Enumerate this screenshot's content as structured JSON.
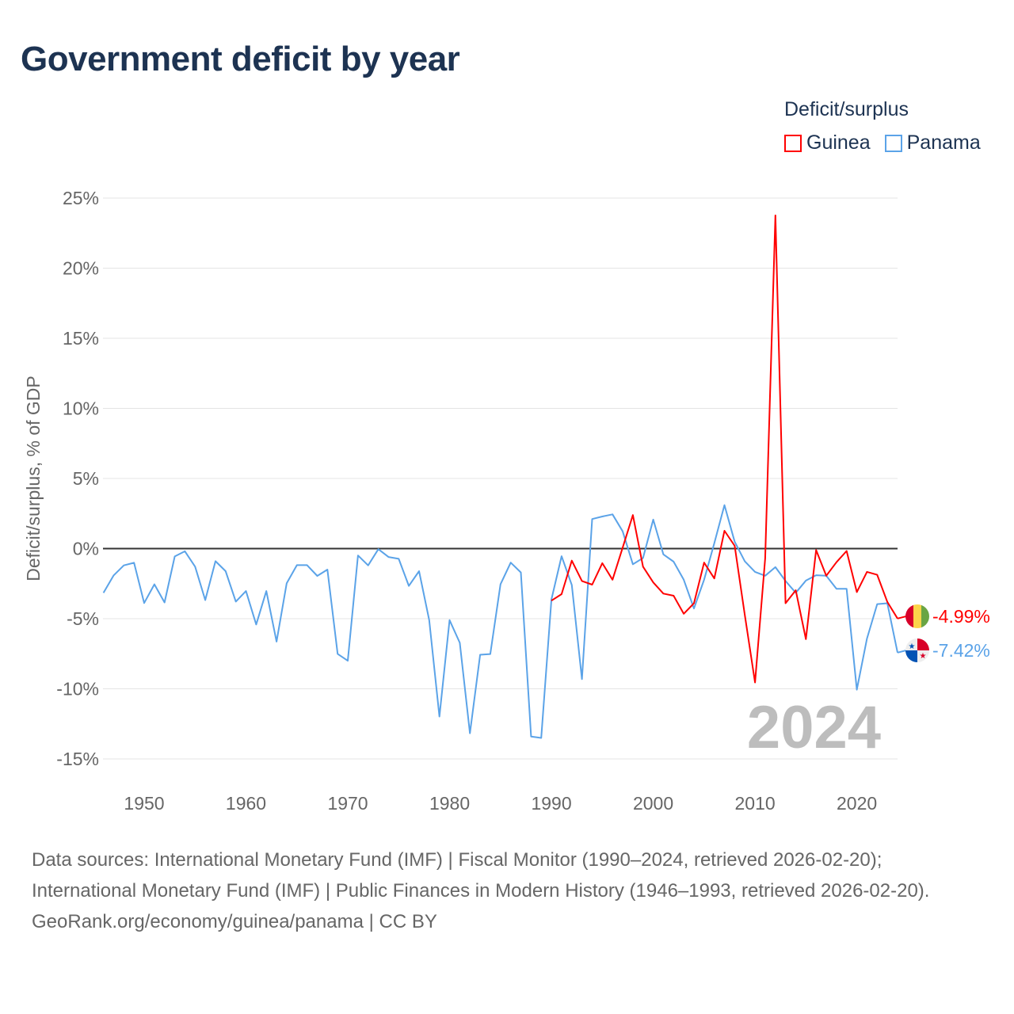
{
  "title": "Government deficit by year",
  "legend": {
    "title": "Deficit/surplus",
    "items": [
      {
        "name": "Guinea",
        "color": "#ff0000"
      },
      {
        "name": "Panama",
        "color": "#5ba3e8"
      }
    ]
  },
  "footer": {
    "sources": "Data sources: International Monetary Fund (IMF) | Fiscal Monitor (1990–2024, retrieved 2026-02-20); International Monetary Fund (IMF) | Public Finances in Modern History (1946–1993, retrieved 2026-02-20).",
    "credit": "GeoRank.org/economy/guinea/panama | CC BY"
  },
  "chart_data": {
    "type": "line",
    "title": "Government deficit by year",
    "ylabel": "Deficit/surplus, % of GDP",
    "xlabel": "",
    "xlim": [
      1946,
      2024
    ],
    "ylim": [
      -15,
      25
    ],
    "xticks": [
      1950,
      1960,
      1970,
      1980,
      1990,
      2000,
      2010,
      2020
    ],
    "yticks": [
      -15,
      -10,
      -5,
      0,
      5,
      10,
      15,
      20,
      25
    ],
    "ytick_labels": [
      "-15%",
      "-10%",
      "-5%",
      "0%",
      "5%",
      "10%",
      "15%",
      "20%",
      "25%"
    ],
    "year_watermark": "2024",
    "series": [
      {
        "name": "Guinea",
        "color": "#ff0000",
        "end_label": "-4.99%",
        "start_year": 1990,
        "values": [
          -3.71,
          -3.25,
          -0.86,
          -2.31,
          -2.57,
          -1.04,
          -2.22,
          0.07,
          2.39,
          -1.29,
          -2.41,
          -3.21,
          -3.36,
          -4.65,
          -3.9,
          -1.0,
          -2.13,
          1.27,
          0.2,
          -4.74,
          -9.55,
          -0.7,
          23.76,
          -3.9,
          -2.97,
          -6.46,
          -0.11,
          -1.94,
          -0.97,
          -0.17,
          -3.1,
          -1.66,
          -1.87,
          -3.8,
          -4.99
        ]
      },
      {
        "name": "Panama",
        "color": "#5ba3e8",
        "end_label": "-7.42%",
        "start_year": 1946,
        "values": [
          -3.16,
          -1.91,
          -1.2,
          -1.01,
          -3.88,
          -2.55,
          -3.84,
          -0.56,
          -0.19,
          -1.29,
          -3.67,
          -0.9,
          -1.61,
          -3.78,
          -3.03,
          -5.41,
          -3.03,
          -6.63,
          -2.47,
          -1.18,
          -1.18,
          -1.95,
          -1.5,
          -7.51,
          -8.0,
          -0.49,
          -1.2,
          -0.04,
          -0.6,
          -0.73,
          -2.66,
          -1.61,
          -5.1,
          -11.98,
          -5.1,
          -6.72,
          -13.17,
          -7.57,
          -7.52,
          -2.54,
          -1.0,
          -1.7,
          -13.4,
          -13.5,
          -3.62,
          -0.54,
          -2.6,
          -9.31,
          2.11,
          2.29,
          2.44,
          1.23,
          -1.12,
          -0.67,
          2.07,
          -0.41,
          -0.93,
          -2.22,
          -4.27,
          -2.22,
          0.39,
          3.1,
          0.49,
          -0.91,
          -1.66,
          -1.94,
          -1.32,
          -2.31,
          -3.15,
          -2.28,
          -1.9,
          -1.94,
          -2.87,
          -2.87,
          -10.06,
          -6.42,
          -3.96,
          -3.9,
          -7.42
        ]
      }
    ]
  }
}
